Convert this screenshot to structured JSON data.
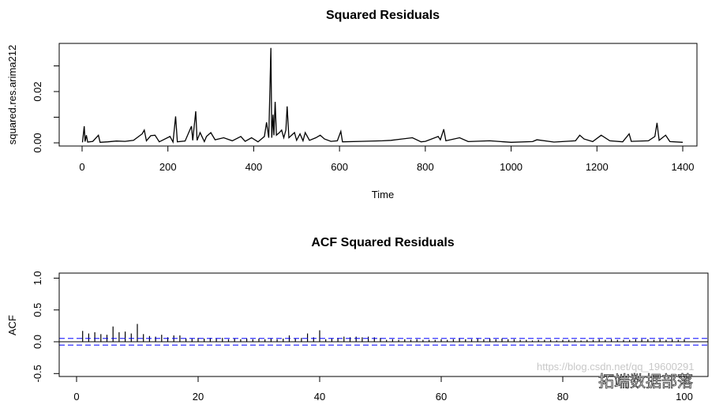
{
  "chart_data": [
    {
      "type": "line",
      "title": "Squared Residuals",
      "xlabel": "Time",
      "ylabel": "squared.res.arima212",
      "xlim": [
        -50,
        1450
      ],
      "ylim": [
        -0.0012,
        0.0388
      ],
      "xticks": [
        "0",
        "200",
        "400",
        "600",
        "800",
        "1000",
        "1200",
        "1400"
      ],
      "xtick_values": [
        0,
        200,
        400,
        600,
        800,
        1000,
        1200,
        1400
      ],
      "ytick_values": [
        0,
        0.01,
        0.02,
        0.03
      ],
      "yticks_labeled": [
        "0.00",
        "",
        "0.02",
        ""
      ],
      "grid": false,
      "series": [
        {
          "color": "#000000",
          "points": [
            [
              1,
              0.0002
            ],
            [
              5,
              0.0065
            ],
            [
              7,
              0.0005
            ],
            [
              10,
              0.003
            ],
            [
              13,
              0.0003
            ],
            [
              25,
              0.0006
            ],
            [
              38,
              0.003
            ],
            [
              42,
              0.0002
            ],
            [
              60,
              0.0004
            ],
            [
              80,
              0.0007
            ],
            [
              100,
              0.0006
            ],
            [
              120,
              0.001
            ],
            [
              140,
              0.0035
            ],
            [
              145,
              0.005
            ],
            [
              150,
              0.0008
            ],
            [
              160,
              0.0028
            ],
            [
              170,
              0.003
            ],
            [
              180,
              0.0004
            ],
            [
              205,
              0.0025
            ],
            [
              212,
              0.0003
            ],
            [
              218,
              0.0103
            ],
            [
              222,
              0.0004
            ],
            [
              240,
              0.0007
            ],
            [
              255,
              0.0065
            ],
            [
              258,
              0.001
            ],
            [
              265,
              0.0123
            ],
            [
              268,
              0.001
            ],
            [
              275,
              0.004
            ],
            [
              285,
              0.0005
            ],
            [
              290,
              0.0025
            ],
            [
              300,
              0.004
            ],
            [
              310,
              0.0012
            ],
            [
              330,
              0.002
            ],
            [
              350,
              0.0008
            ],
            [
              370,
              0.0025
            ],
            [
              380,
              0.0006
            ],
            [
              395,
              0.002
            ],
            [
              410,
              0.0004
            ],
            [
              425,
              0.0025
            ],
            [
              430,
              0.008
            ],
            [
              435,
              0.002
            ],
            [
              440,
              0.037
            ],
            [
              442,
              0.002
            ],
            [
              445,
              0.011
            ],
            [
              447,
              0.003
            ],
            [
              450,
              0.016
            ],
            [
              453,
              0.003
            ],
            [
              460,
              0.004
            ],
            [
              465,
              0.005
            ],
            [
              470,
              0.002
            ],
            [
              475,
              0.005
            ],
            [
              478,
              0.0142
            ],
            [
              482,
              0.002
            ],
            [
              495,
              0.004
            ],
            [
              500,
              0.001
            ],
            [
              508,
              0.0035
            ],
            [
              515,
              0.0008
            ],
            [
              520,
              0.004
            ],
            [
              530,
              0.001
            ],
            [
              545,
              0.002
            ],
            [
              555,
              0.003
            ],
            [
              565,
              0.0015
            ],
            [
              580,
              0.0006
            ],
            [
              595,
              0.0008
            ],
            [
              603,
              0.0045
            ],
            [
              607,
              0.0004
            ],
            [
              650,
              0.0006
            ],
            [
              700,
              0.0008
            ],
            [
              720,
              0.001
            ],
            [
              770,
              0.002
            ],
            [
              790,
              0.0004
            ],
            [
              800,
              0.0006
            ],
            [
              830,
              0.0025
            ],
            [
              835,
              0.0012
            ],
            [
              843,
              0.0053
            ],
            [
              848,
              0.0008
            ],
            [
              880,
              0.002
            ],
            [
              900,
              0.0005
            ],
            [
              950,
              0.0008
            ],
            [
              1000,
              0.0002
            ],
            [
              1050,
              0.0005
            ],
            [
              1060,
              0.0012
            ],
            [
              1100,
              0.0003
            ],
            [
              1150,
              0.0008
            ],
            [
              1160,
              0.003
            ],
            [
              1170,
              0.0015
            ],
            [
              1190,
              0.0005
            ],
            [
              1210,
              0.003
            ],
            [
              1230,
              0.0008
            ],
            [
              1260,
              0.0004
            ],
            [
              1275,
              0.0035
            ],
            [
              1280,
              0.0006
            ],
            [
              1320,
              0.0008
            ],
            [
              1335,
              0.0025
            ],
            [
              1340,
              0.0078
            ],
            [
              1345,
              0.001
            ],
            [
              1360,
              0.003
            ],
            [
              1370,
              0.0005
            ],
            [
              1400,
              0.0002
            ]
          ]
        }
      ]
    },
    {
      "type": "bar",
      "title": "ACF Squared Residuals",
      "xlabel": "",
      "ylabel": "ACF",
      "xlim": [
        -4,
        103
      ],
      "ylim": [
        -0.55,
        1.05
      ],
      "xticks": [
        "0",
        "20",
        "40",
        "60",
        "80",
        "100"
      ],
      "xtick_values": [
        0,
        20,
        40,
        60,
        80,
        100
      ],
      "yticks": [
        "-0.5",
        "0.0",
        "0.5",
        "1.0"
      ],
      "ytick_values": [
        -0.5,
        0,
        0.5,
        1.0
      ],
      "confidence_band": [
        -0.053,
        0.053
      ],
      "confidence_color": "#0000ff",
      "grid": false,
      "lags": [
        1,
        2,
        3,
        4,
        5,
        6,
        7,
        8,
        9,
        10,
        11,
        12,
        13,
        14,
        15,
        16,
        17,
        18,
        19,
        20,
        21,
        22,
        23,
        24,
        25,
        26,
        27,
        28,
        29,
        30,
        31,
        32,
        33,
        34,
        35,
        36,
        37,
        38,
        39,
        40,
        41,
        42,
        43,
        44,
        45,
        46,
        47,
        48,
        49,
        50,
        51,
        52,
        53,
        54,
        55,
        56,
        57,
        58,
        59,
        60,
        61,
        62,
        63,
        64,
        65,
        66,
        67,
        68,
        69,
        70,
        71,
        72,
        73,
        74,
        75,
        76,
        77,
        78,
        79,
        80,
        81,
        82,
        83,
        84,
        85,
        86,
        87,
        88,
        89,
        90,
        91,
        92,
        93,
        94,
        95,
        96,
        97,
        98,
        99,
        100
      ],
      "values": [
        0.17,
        0.13,
        0.15,
        0.12,
        0.11,
        0.24,
        0.15,
        0.16,
        0.13,
        0.28,
        0.12,
        0.09,
        0.08,
        0.11,
        0.07,
        0.1,
        0.1,
        0.05,
        0.05,
        0.06,
        0.05,
        0.06,
        0.05,
        0.06,
        0.04,
        0.05,
        0.04,
        0.05,
        0.04,
        0.05,
        0.04,
        0.05,
        0.04,
        0.05,
        0.1,
        0.05,
        0.06,
        0.13,
        0.07,
        0.18,
        0.04,
        0.05,
        0.06,
        0.08,
        0.07,
        0.08,
        0.07,
        0.08,
        0.07,
        0.06,
        0.03,
        0.04,
        0.03,
        0.04,
        0.03,
        0.04,
        0.03,
        0.03,
        0.03,
        0.04,
        0.03,
        0.04,
        0.05,
        0.04,
        0.04,
        0.05,
        0.04,
        0.05,
        0.04,
        0.05,
        0.04,
        0.04,
        0.03,
        0.03,
        0.02,
        0.03,
        0.03,
        0.03,
        0.02,
        0.03,
        0.03,
        0.03,
        0.02,
        0.03,
        0.03,
        0.04,
        0.03,
        0.04,
        0.03,
        0.03,
        0.03,
        0.04,
        0.04,
        0.04,
        0.03,
        0.04,
        0.03,
        0.04,
        0.03,
        0.04
      ]
    }
  ],
  "watermark": {
    "text": "拓端数据部落",
    "url": "https://blog.csdn.net/qq_19600291"
  }
}
